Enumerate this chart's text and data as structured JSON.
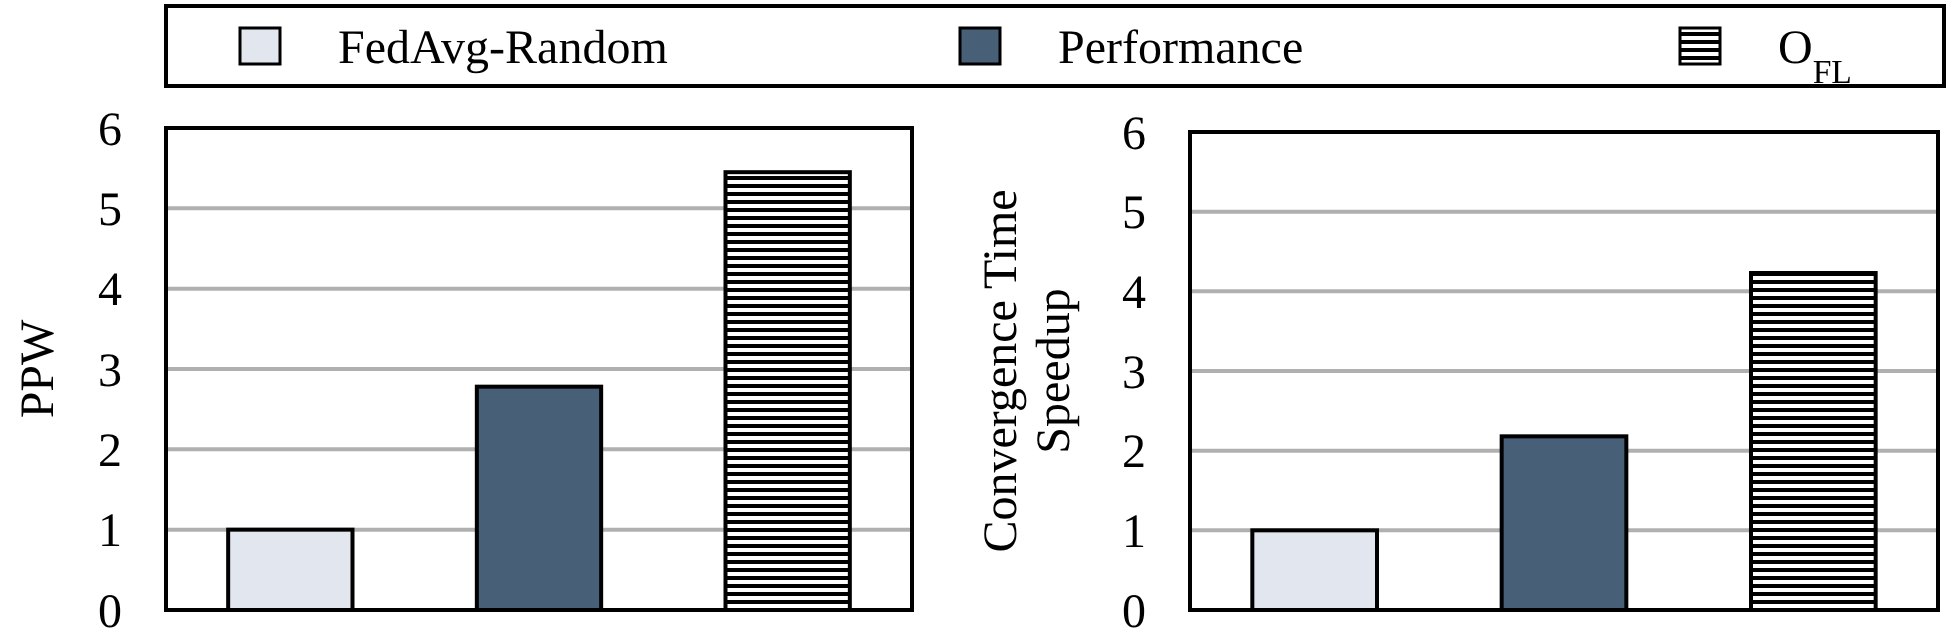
{
  "chart_data": [
    {
      "type": "bar",
      "ylabel": "PPW",
      "categories": [
        null,
        null,
        null
      ],
      "ylim": [
        0,
        6
      ],
      "yticks": [
        0,
        1,
        2,
        3,
        4,
        5,
        6
      ],
      "grid": "y",
      "legend": "top",
      "series": [
        {
          "name": "FedAvg-Random",
          "color": "#e2e6ee",
          "values": [
            1,
            null,
            null
          ]
        },
        {
          "name": "Performance",
          "color": "#475f77",
          "values": [
            null,
            2.78,
            null
          ]
        },
        {
          "name": "O$_{FL}$",
          "color": "#000000",
          "values": [
            null,
            null,
            5.45
          ]
        }
      ]
    },
    {
      "type": "bar",
      "ylabel": "Convergence Time Speedup",
      "categories": [
        null,
        null,
        null
      ],
      "ylim": [
        0,
        6
      ],
      "yticks": [
        0,
        1,
        2,
        3,
        4,
        5,
        6
      ],
      "grid": "y",
      "legend": false,
      "series": [
        {
          "color": "#e2e6ee",
          "values": [
            1,
            null,
            null
          ]
        },
        {
          "color": "#475f77",
          "values": [
            null,
            2.18,
            null
          ]
        },
        {
          "color": "#000000",
          "values": [
            null,
            null,
            4.23
          ]
        }
      ]
    }
  ]
}
